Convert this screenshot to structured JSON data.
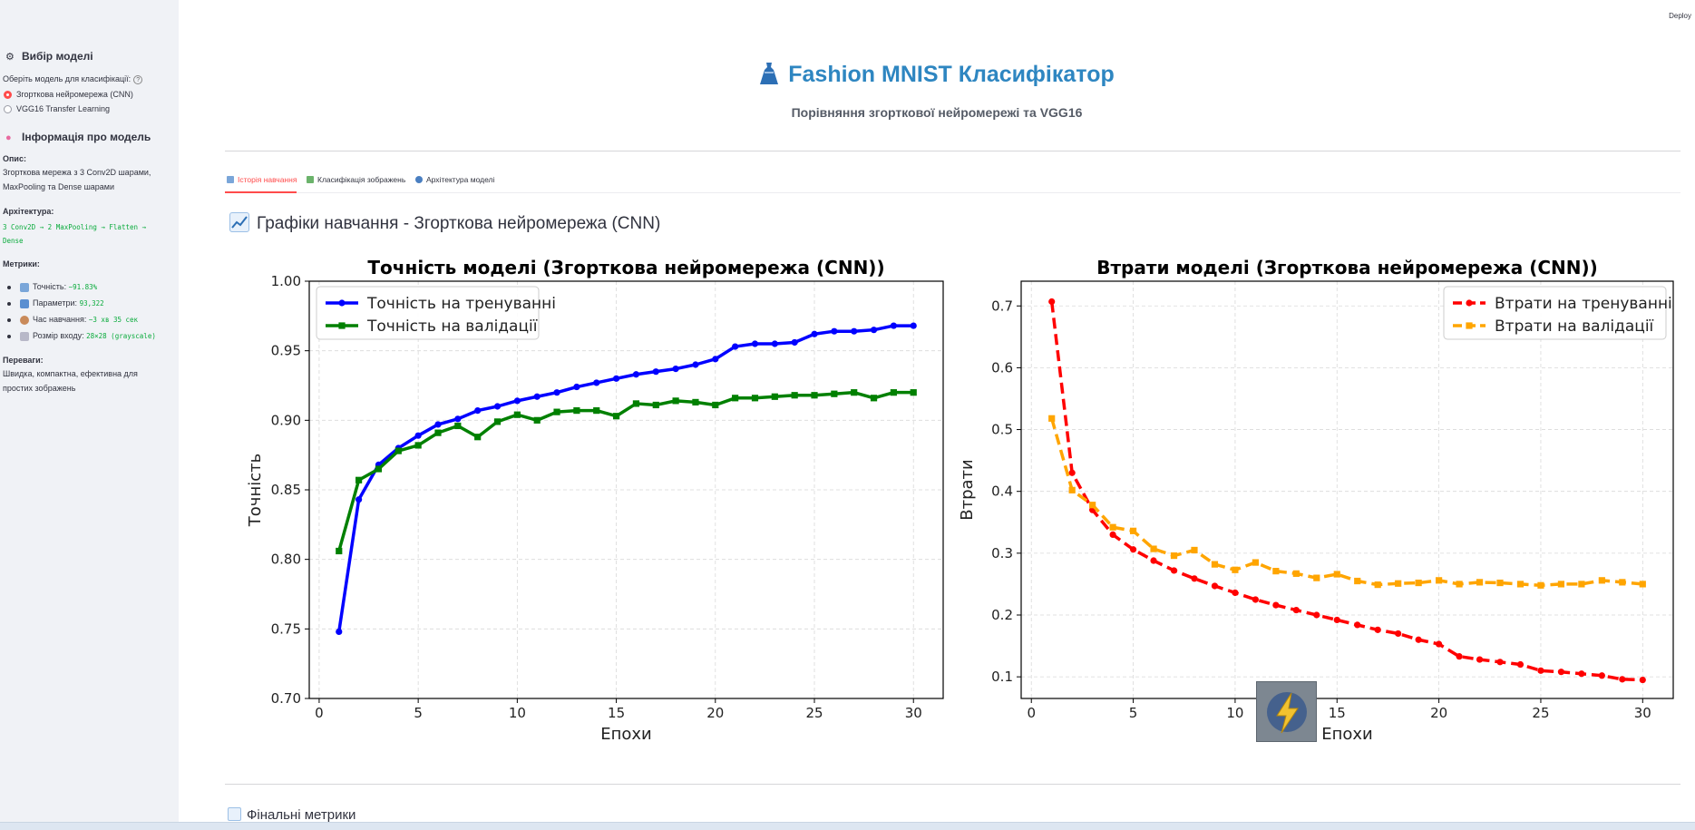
{
  "sidebar": {
    "model_select_title": "Вибір моделі",
    "model_select_icon": "gear-icon",
    "radio_label": "Оберіть модель для класифікації:",
    "options": [
      {
        "label": "Згорткова нейромережа (CNN)",
        "selected": true
      },
      {
        "label": "VGG16 Transfer Learning",
        "selected": false
      }
    ],
    "info_title": "Інформація про модель",
    "info_icon": "brain-icon",
    "description_label": "Опис:",
    "description_line1": "Згорткова мережа з 3 Conv2D шарами,",
    "description_line2": "MaxPooling та Dense шарами",
    "architecture_label": "Архітектура:",
    "architecture_line1": "3 Conv2D → 2 MaxPooling → Flatten →",
    "architecture_line2": "Dense",
    "metrics_label": "Метрики:",
    "metrics": [
      {
        "icon": "bar-chart-icon",
        "label": "Точність:",
        "value": "~91.83%"
      },
      {
        "icon": "numbers-icon",
        "label": "Параметри:",
        "value": "93,322"
      },
      {
        "icon": "timer-icon",
        "label": "Час навчання:",
        "value": "~3 хв 35 сек"
      },
      {
        "icon": "ruler-icon",
        "label": "Розмір входу:",
        "value": "28×28 (grayscale)"
      }
    ],
    "advantages_label": "Переваги:",
    "advantages_line1": "Швидка, компактна, ефективна для",
    "advantages_line2": "простих зображень"
  },
  "header": {
    "deploy_label": "Deploy",
    "title": "Fashion MNIST Класифікатор",
    "title_icon": "dress-icon",
    "subtitle": "Порівняння згорткової нейромережі та VGG16"
  },
  "tabs": [
    {
      "label": "Історія навчання",
      "icon": "bar-chart-icon",
      "active": true
    },
    {
      "label": "Класифікація зображень",
      "icon": "image-icon",
      "active": false
    },
    {
      "label": "Архітектура моделі",
      "icon": "magnifier-icon",
      "active": false
    }
  ],
  "section_title": "Графіки навчання - Згорткова нейромережа (CNN)",
  "section_icon": "chart-increasing-icon",
  "final_metrics_title": "Фінальні метрики",
  "final_metrics_icon": "bar-chart-icon",
  "chart_data": [
    {
      "type": "line",
      "title": "Точність моделі (Згорткова нейромережа (CNN))",
      "xlabel": "Епохи",
      "ylabel": "Точність",
      "xlim": [
        -0.5,
        31.5
      ],
      "ylim": [
        0.7,
        1.0
      ],
      "xticks": [
        0,
        5,
        10,
        15,
        20,
        25,
        30
      ],
      "yticks": [
        0.7,
        0.75,
        0.8,
        0.85,
        0.9,
        0.95,
        1.0
      ],
      "yticks_labels": [
        "0.70",
        "0.75",
        "0.80",
        "0.85",
        "0.90",
        "0.95",
        "1.00"
      ],
      "grid": true,
      "legend": "upper-left",
      "x": [
        1,
        2,
        3,
        4,
        5,
        6,
        7,
        8,
        9,
        10,
        11,
        12,
        13,
        14,
        15,
        16,
        17,
        18,
        19,
        20,
        21,
        22,
        23,
        24,
        25,
        26,
        27,
        28,
        29,
        30
      ],
      "series": [
        {
          "name": "Точність на тренуванні",
          "color": "#0000ff",
          "marker": "circle",
          "dash": "solid",
          "values": [
            0.748,
            0.843,
            0.868,
            0.88,
            0.889,
            0.897,
            0.901,
            0.907,
            0.91,
            0.914,
            0.917,
            0.92,
            0.924,
            0.927,
            0.93,
            0.933,
            0.935,
            0.937,
            0.94,
            0.944,
            0.953,
            0.955,
            0.955,
            0.956,
            0.962,
            0.964,
            0.964,
            0.965,
            0.968,
            0.968
          ]
        },
        {
          "name": "Точність на валідації",
          "color": "#008000",
          "marker": "square",
          "dash": "solid",
          "values": [
            0.806,
            0.857,
            0.865,
            0.878,
            0.882,
            0.891,
            0.896,
            0.888,
            0.899,
            0.904,
            0.9,
            0.906,
            0.907,
            0.907,
            0.903,
            0.912,
            0.911,
            0.914,
            0.913,
            0.911,
            0.916,
            0.916,
            0.917,
            0.918,
            0.918,
            0.919,
            0.92,
            0.916,
            0.92,
            0.92
          ]
        }
      ]
    },
    {
      "type": "line",
      "title": "Втрати моделі (Згорткова нейромережа (CNN))",
      "xlabel": "Епохи",
      "ylabel": "Втрати",
      "xlim": [
        -0.5,
        31.5
      ],
      "ylim": [
        0.065,
        0.74
      ],
      "xticks": [
        0,
        5,
        10,
        15,
        20,
        25,
        30
      ],
      "yticks": [
        0.1,
        0.2,
        0.3,
        0.4,
        0.5,
        0.6,
        0.7
      ],
      "yticks_labels": [
        "0.1",
        "0.2",
        "0.3",
        "0.4",
        "0.5",
        "0.6",
        "0.7"
      ],
      "grid": true,
      "legend": "upper-right",
      "x": [
        1,
        2,
        3,
        4,
        5,
        6,
        7,
        8,
        9,
        10,
        11,
        12,
        13,
        14,
        15,
        16,
        17,
        18,
        19,
        20,
        21,
        22,
        23,
        24,
        25,
        26,
        27,
        28,
        29,
        30
      ],
      "series": [
        {
          "name": "Втрати на тренуванні",
          "color": "#ff0000",
          "marker": "circle",
          "dash": "dashed",
          "values": [
            0.707,
            0.43,
            0.37,
            0.33,
            0.306,
            0.288,
            0.272,
            0.259,
            0.247,
            0.236,
            0.225,
            0.216,
            0.208,
            0.2,
            0.192,
            0.184,
            0.176,
            0.17,
            0.16,
            0.153,
            0.133,
            0.128,
            0.124,
            0.12,
            0.11,
            0.108,
            0.105,
            0.102,
            0.096,
            0.095
          ]
        },
        {
          "name": "Втрати на валідації",
          "color": "#ffa500",
          "marker": "square",
          "dash": "dashed",
          "values": [
            0.518,
            0.402,
            0.378,
            0.342,
            0.336,
            0.307,
            0.296,
            0.305,
            0.282,
            0.273,
            0.285,
            0.271,
            0.267,
            0.26,
            0.266,
            0.255,
            0.249,
            0.251,
            0.252,
            0.256,
            0.25,
            0.253,
            0.252,
            0.25,
            0.248,
            0.25,
            0.25,
            0.256,
            0.253,
            0.25
          ]
        }
      ]
    }
  ]
}
